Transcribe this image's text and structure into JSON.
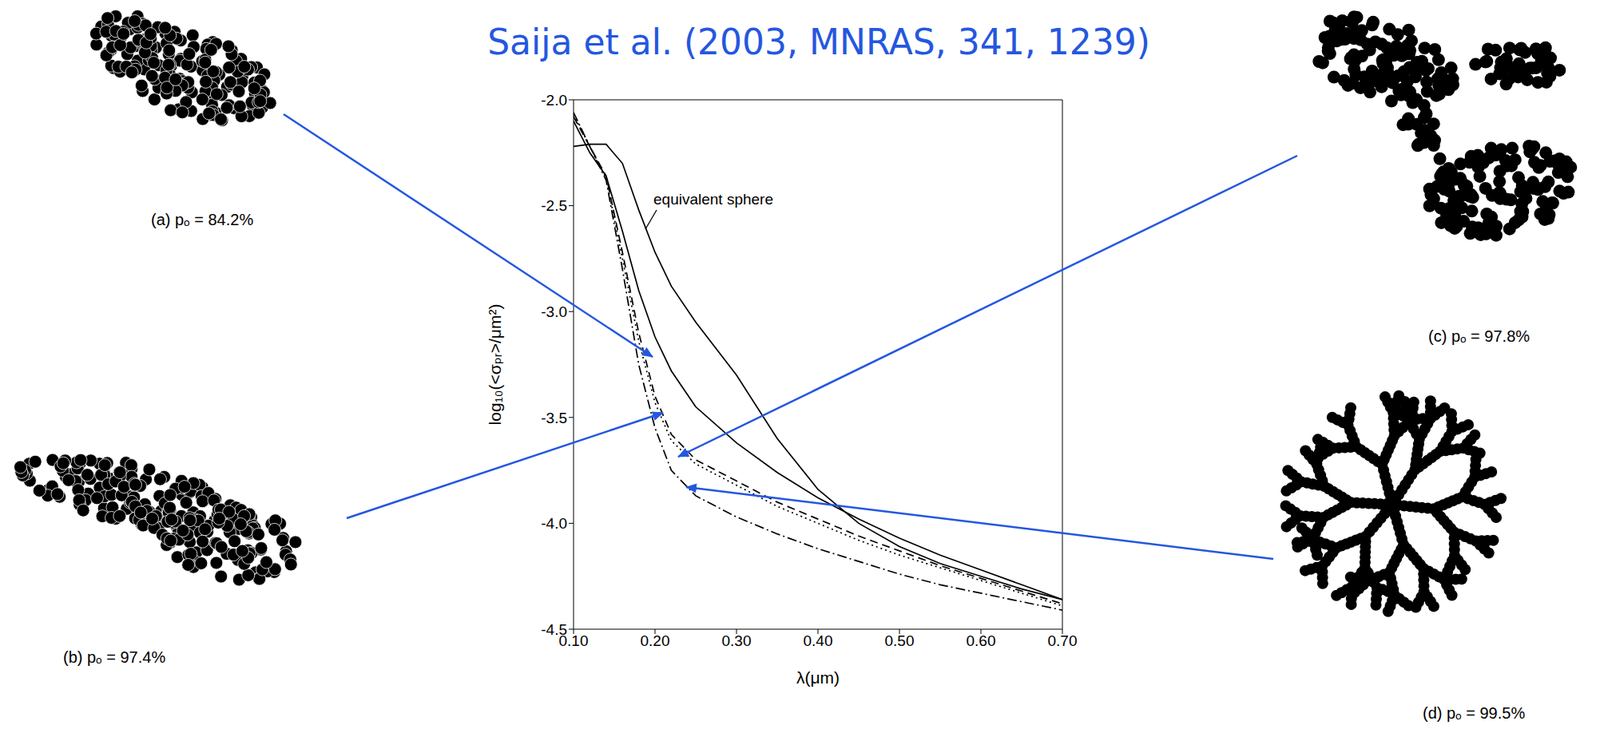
{
  "chart_data": {
    "type": "line",
    "title": "Saija et al. (2003, MNRAS, 341, 1239)",
    "x_label": "λ(μm)",
    "y_label": "log₁₀(<σₚᵣ>/μm²)",
    "x": [
      0.1,
      0.12,
      0.14,
      0.16,
      0.18,
      0.2,
      0.22,
      0.25,
      0.3,
      0.35,
      0.4,
      0.45,
      0.5,
      0.55,
      0.6,
      0.65,
      0.7
    ],
    "series": [
      {
        "name": "equivalent sphere",
        "color": "#000000",
        "line_style": "solid",
        "values": [
          -2.22,
          -2.21,
          -2.21,
          -2.3,
          -2.52,
          -2.72,
          -2.88,
          -3.05,
          -3.3,
          -3.6,
          -3.84,
          -4.0,
          -4.11,
          -4.19,
          -4.25,
          -4.31,
          -4.36
        ]
      },
      {
        "name": "(a) pₒ = 84.2%",
        "color": "#000000",
        "line_style": "solid",
        "values": [
          -2.1,
          -2.25,
          -2.36,
          -2.62,
          -2.9,
          -3.12,
          -3.28,
          -3.45,
          -3.62,
          -3.76,
          -3.88,
          -3.98,
          -4.07,
          -4.15,
          -4.22,
          -4.29,
          -4.36
        ]
      },
      {
        "name": "(b) pₒ = 97.4%",
        "color": "#000000",
        "line_style": "dashed",
        "values": [
          -2.08,
          -2.22,
          -2.36,
          -2.72,
          -3.1,
          -3.4,
          -3.58,
          -3.7,
          -3.8,
          -3.9,
          -3.98,
          -4.06,
          -4.13,
          -4.2,
          -4.26,
          -4.32,
          -4.38
        ]
      },
      {
        "name": "(c) pₒ = 97.8%",
        "color": "#000000",
        "line_style": "dotted",
        "values": [
          -2.07,
          -2.22,
          -2.37,
          -2.75,
          -3.14,
          -3.43,
          -3.61,
          -3.72,
          -3.82,
          -3.92,
          -4.0,
          -4.08,
          -4.15,
          -4.21,
          -4.27,
          -4.33,
          -4.39
        ]
      },
      {
        "name": "(d) pₒ = 99.5%",
        "color": "#000000",
        "line_style": "dashdot",
        "values": [
          -2.06,
          -2.22,
          -2.38,
          -2.8,
          -3.25,
          -3.55,
          -3.75,
          -3.87,
          -3.97,
          -4.05,
          -4.12,
          -4.18,
          -4.24,
          -4.29,
          -4.33,
          -4.37,
          -4.41
        ]
      }
    ],
    "xlim": [
      0.1,
      0.7
    ],
    "ylim": [
      -4.5,
      -2.0
    ],
    "xticks": [
      {
        "value": 0.1,
        "label": "0.10"
      },
      {
        "value": 0.2,
        "label": "0.20"
      },
      {
        "value": 0.3,
        "label": "0.30"
      },
      {
        "value": 0.4,
        "label": "0.40"
      },
      {
        "value": 0.5,
        "label": "0.50"
      },
      {
        "value": 0.6,
        "label": "0.60"
      },
      {
        "value": 0.7,
        "label": "0.70"
      }
    ],
    "yticks": [
      {
        "value": -2,
        "label": "-2.0"
      },
      -2.5,
      {
        "value": -3,
        "label": "-3.0"
      },
      -3.5,
      {
        "value": -4,
        "label": "-4.0"
      },
      -4.5
    ],
    "grid": false
  }
}
